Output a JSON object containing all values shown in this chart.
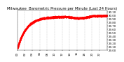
{
  "title": "Milwaukee  Barometric Pressure per Minute (Last 24 Hours)",
  "line_color": "#ff0000",
  "bg_color": "#ffffff",
  "grid_color": "#999999",
  "y_min": 29.0,
  "y_max": 30.15,
  "y_ticks": [
    29.0,
    29.1,
    29.2,
    29.3,
    29.4,
    29.5,
    29.6,
    29.7,
    29.8,
    29.9,
    30.0,
    30.1
  ],
  "num_points": 1440,
  "x_tick_interval": 120,
  "title_fontsize": 3.8,
  "tick_fontsize": 2.8,
  "y_label_format": "%.2f"
}
